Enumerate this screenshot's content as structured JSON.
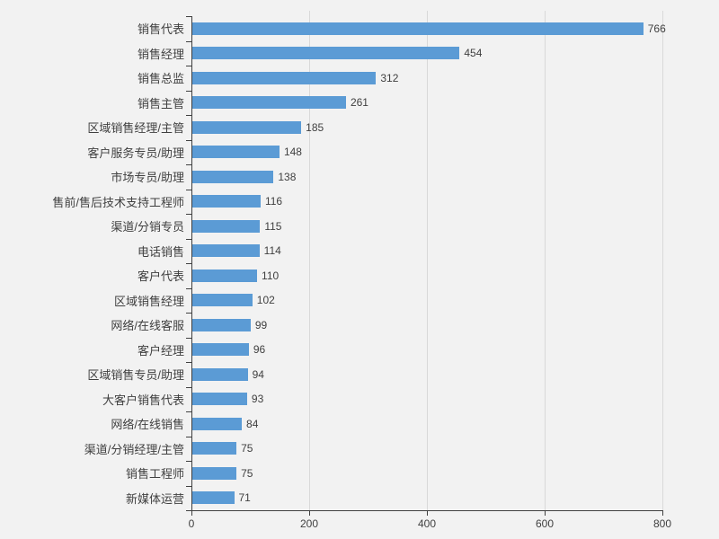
{
  "colors": {
    "background": "#f2f2f2",
    "bar": "#5B9BD5",
    "gridline": "#d9d9d9",
    "axis": "#404040",
    "text": "#404040"
  },
  "chart_data": {
    "type": "bar",
    "orientation": "horizontal",
    "categories": [
      "销售代表",
      "销售经理",
      "销售总监",
      "销售主管",
      "区域销售经理/主管",
      "客户服务专员/助理",
      "市场专员/助理",
      "售前/售后技术支持工程师",
      "渠道/分销专员",
      "电话销售",
      "客户代表",
      "区域销售经理",
      "网络/在线客服",
      "客户经理",
      "区域销售专员/助理",
      "大客户销售代表",
      "网络/在线销售",
      "渠道/分销经理/主管",
      "销售工程师",
      "新媒体运营"
    ],
    "values": [
      766,
      454,
      312,
      261,
      185,
      148,
      138,
      116,
      115,
      114,
      110,
      102,
      99,
      96,
      94,
      93,
      84,
      75,
      75,
      71
    ],
    "xlabel": "",
    "ylabel": "",
    "xlim": [
      0,
      800
    ],
    "x_ticks": [
      0,
      200,
      400,
      600,
      800
    ],
    "grid": true,
    "legend": false,
    "value_labels": true
  }
}
